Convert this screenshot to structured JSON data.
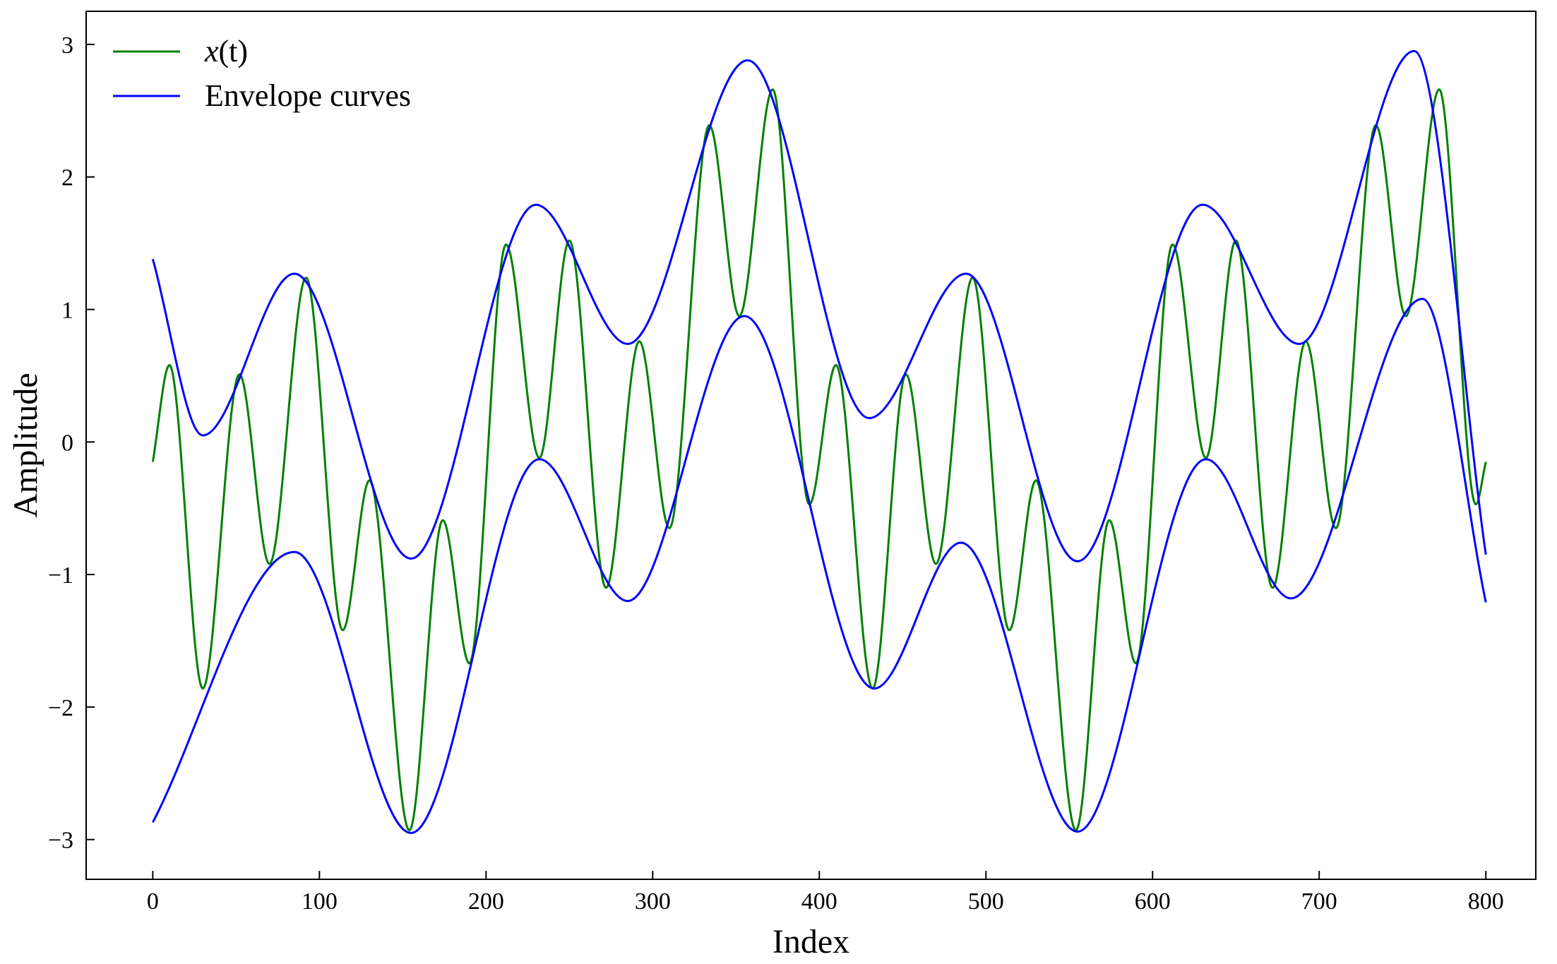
{
  "chart_data": {
    "type": "line",
    "title": "",
    "xlabel": "Index",
    "ylabel": "Amplitude",
    "xlim": [
      -40,
      830
    ],
    "ylim": [
      -3.3,
      3.25
    ],
    "xticks": [
      0,
      100,
      200,
      300,
      400,
      500,
      600,
      700,
      800
    ],
    "xtick_labels": [
      "0",
      "100",
      "200",
      "300",
      "400",
      "500",
      "600",
      "700",
      "800"
    ],
    "yticks": [
      -3,
      -2,
      -1,
      0,
      1,
      2,
      3
    ],
    "ytick_labels": [
      "−3",
      "−2",
      "−1",
      "0",
      "1",
      "2",
      "3"
    ],
    "grid": false,
    "legend": {
      "placement": "top-left"
    },
    "series": [
      {
        "name": "x(t)",
        "legend_main": "x",
        "legend_suffix": "(t)",
        "color": "#008000",
        "description": "oscillating signal",
        "x": [
          0,
          10,
          30,
          52,
          70,
          92,
          114,
          130,
          154,
          174,
          190,
          212,
          232,
          250,
          272,
          292,
          310,
          334,
          352,
          372,
          394,
          410,
          432,
          452,
          470,
          492,
          514,
          530,
          554,
          574,
          590,
          612,
          632,
          650,
          672,
          692,
          710,
          734,
          752,
          772,
          794,
          800
        ],
        "y": [
          -0.15,
          0.58,
          -1.86,
          0.51,
          -0.92,
          1.24,
          -1.42,
          -0.29,
          -2.93,
          -0.59,
          -1.67,
          1.49,
          -0.12,
          1.52,
          -1.1,
          0.76,
          -0.65,
          2.39,
          0.95,
          2.66,
          -0.47,
          0.58,
          -1.86,
          0.51,
          -0.92,
          1.24,
          -1.42,
          -0.29,
          -2.93,
          -0.59,
          -1.67,
          1.49,
          -0.12,
          1.52,
          -1.1,
          0.76,
          -0.65,
          2.39,
          0.95,
          2.66,
          -0.47,
          -0.15
        ]
      },
      {
        "name": "Envelope curves",
        "color": "#0000ff",
        "description": "upper envelope",
        "x": [
          0,
          30,
          85,
          155,
          230,
          285,
          357,
          430,
          488,
          555,
          630,
          688,
          757,
          800
        ],
        "y": [
          1.38,
          0.05,
          1.27,
          -0.88,
          1.79,
          0.74,
          2.88,
          0.18,
          1.27,
          -0.9,
          1.79,
          0.74,
          2.95,
          -0.85
        ]
      },
      {
        "name": "",
        "color": "#0000ff",
        "description": "lower envelope",
        "x": [
          0,
          85,
          155,
          232,
          285,
          355,
          433,
          485,
          555,
          632,
          683,
          762,
          800
        ],
        "y": [
          -2.87,
          -0.83,
          -2.95,
          -0.13,
          -1.2,
          0.95,
          -1.86,
          -0.76,
          -2.94,
          -0.13,
          -1.18,
          1.08,
          -1.21
        ]
      }
    ]
  }
}
